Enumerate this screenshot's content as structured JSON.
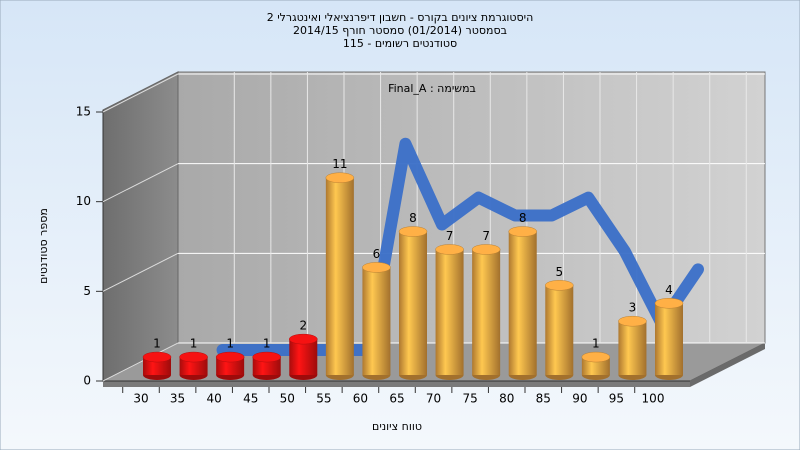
{
  "chart_data": {
    "type": "bar",
    "title": [
      "היסטוגרמת ציונים בקורס - חשבון דיפרנציאלי ואינטגרלי 2",
      "בסמסטר (01/2014) סמסטר חורף 2014/15",
      "סטודנטים רשומים - 115"
    ],
    "annotation": "במשימה : Final_A",
    "x_label": "טווח ציונים",
    "y_label": "מספר סטודנטים",
    "categories": [
      "30",
      "35",
      "40",
      "45",
      "50",
      "55",
      "60",
      "65",
      "70",
      "75",
      "80",
      "85",
      "90",
      "95",
      "100"
    ],
    "values": [
      1,
      1,
      1,
      1,
      2,
      11,
      6,
      8,
      7,
      7,
      8,
      5,
      1,
      3,
      4
    ],
    "colors": [
      "#e01010",
      "#e01010",
      "#e01010",
      "#e01010",
      "#e01010",
      "#e8a040",
      "#e8a040",
      "#e8a040",
      "#e8a040",
      "#e8a040",
      "#e8a040",
      "#e8a040",
      "#e8a040",
      "#e8a040",
      "#e8a040"
    ],
    "trend": {
      "color": "#3a6fc8",
      "values": [
        null,
        0.5,
        0.5,
        0.5,
        0.5,
        0.5,
        12,
        7.5,
        9,
        8,
        8,
        9,
        6,
        2,
        5
      ]
    },
    "ylim": [
      0,
      15
    ],
    "yticks": [
      0,
      5,
      10,
      15
    ],
    "grid": true
  }
}
